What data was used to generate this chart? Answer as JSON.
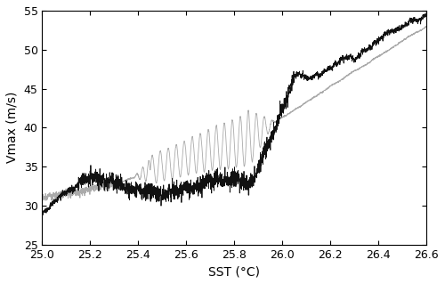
{
  "title": "",
  "xlabel": "SST (°C)",
  "ylabel": "Vmax (m/s)",
  "xlim": [
    26.6,
    25.0
  ],
  "ylim": [
    25,
    55
  ],
  "xticks": [
    26.6,
    26.4,
    26.2,
    26.0,
    25.8,
    25.6,
    25.4,
    25.2,
    25.0
  ],
  "yticks": [
    25,
    30,
    35,
    40,
    45,
    50,
    55
  ],
  "dark_line_color": "#111111",
  "grey_line_color": "#aaaaaa",
  "line_width": 0.6,
  "figsize": [
    5.0,
    3.19
  ],
  "dpi": 100
}
